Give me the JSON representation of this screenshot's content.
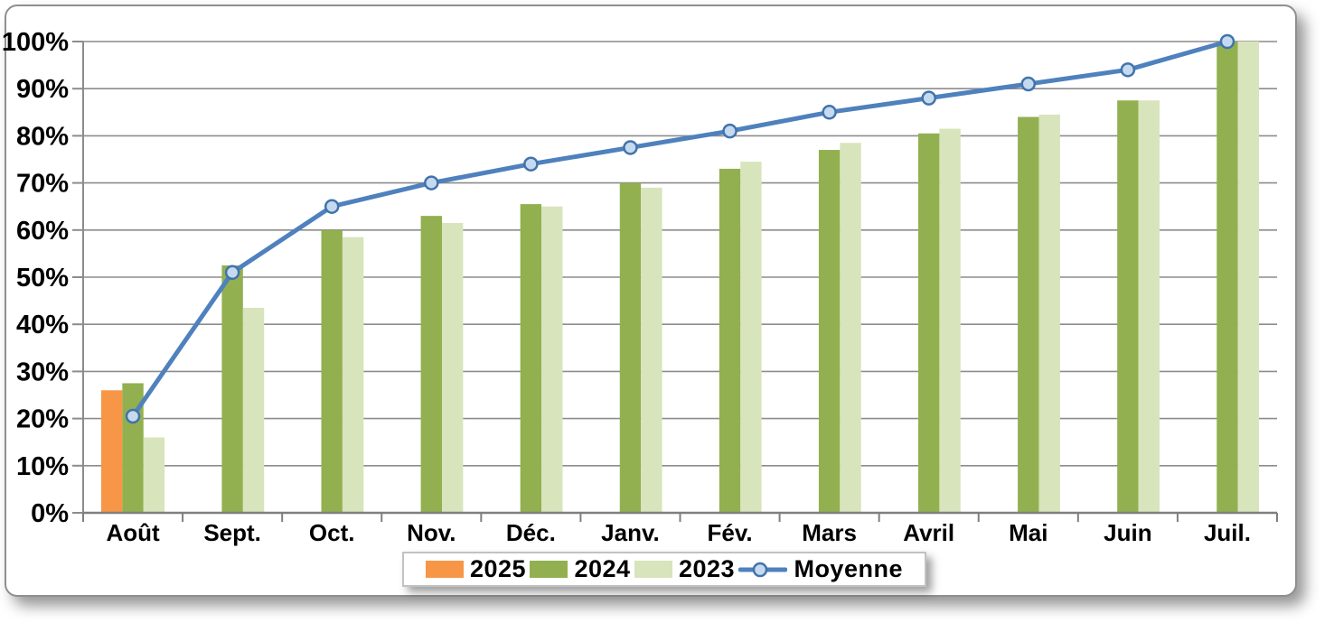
{
  "chart_data": {
    "type": "combo-bar-line",
    "title": "",
    "categories": [
      "Août",
      "Sept.",
      "Oct.",
      "Nov.",
      "Déc.",
      "Janv.",
      "Fév.",
      "Mars",
      "Avril",
      "Mai",
      "Juin",
      "Juil."
    ],
    "y_axis": {
      "min": 0,
      "max": 100,
      "step": 10,
      "unit": "%",
      "tick_labels": [
        "0%",
        "10%",
        "20%",
        "30%",
        "40%",
        "50%",
        "60%",
        "70%",
        "80%",
        "90%",
        "100%"
      ]
    },
    "series": [
      {
        "name": "2025",
        "type": "bar",
        "color": "#F79646",
        "values": [
          26,
          null,
          null,
          null,
          null,
          null,
          null,
          null,
          null,
          null,
          null,
          null
        ]
      },
      {
        "name": "2024",
        "type": "bar",
        "color": "#92B050",
        "values": [
          27.5,
          52.5,
          60,
          63,
          65.5,
          70,
          73,
          77,
          80.5,
          84,
          87.5,
          100
        ]
      },
      {
        "name": "2023",
        "type": "bar",
        "color": "#D8E4BC",
        "values": [
          16,
          43.5,
          58.5,
          61.5,
          65,
          69,
          74.5,
          78.5,
          81.5,
          84.5,
          87.5,
          100
        ]
      },
      {
        "name": "Moyenne",
        "type": "line",
        "color": "#4E81BD",
        "marker_fill": "#C6DAEF",
        "marker_stroke": "#4173AC",
        "values": [
          20.5,
          51,
          65,
          70,
          74,
          77.5,
          81,
          85,
          88,
          91,
          94,
          100
        ]
      }
    ],
    "legend": {
      "position": "bottom",
      "entries": [
        "2025",
        "2024",
        "2023",
        "Moyenne"
      ]
    },
    "grid": true,
    "style": {
      "gridline_color": "#8C8C8C",
      "axis_color": "#7F7F7F",
      "text_color": "#000000",
      "background": "#FFFFFF",
      "card_border": "#8F8F8F",
      "legend_border": "#C2C2C2"
    }
  }
}
